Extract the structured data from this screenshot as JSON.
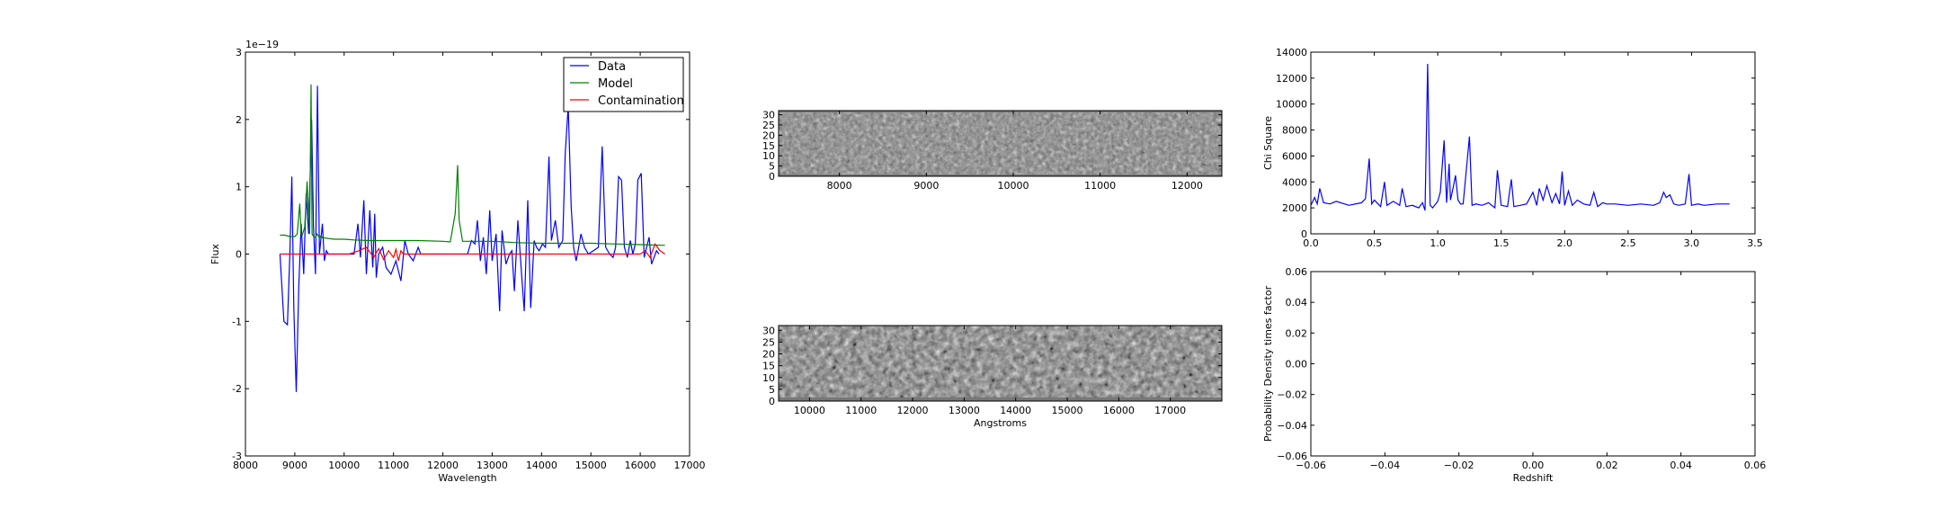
{
  "chart_data": [
    {
      "type": "line",
      "xlabel": "Wavelength",
      "ylabel": "Flux",
      "offset_text": "1e−19",
      "xlim": [
        8000,
        17000
      ],
      "ylim": [
        -3,
        3
      ],
      "xticks": [
        8000,
        9000,
        10000,
        11000,
        12000,
        13000,
        14000,
        15000,
        16000,
        17000
      ],
      "yticks": [
        -3,
        -2,
        -1,
        0,
        1,
        2,
        3
      ],
      "legend": "top-right",
      "series": [
        {
          "name": "Data",
          "color": "#0000ff",
          "x": [
            8700,
            8780,
            8850,
            8900,
            8940,
            8980,
            9030,
            9080,
            9130,
            9180,
            9230,
            9280,
            9340,
            9380,
            9420,
            9460,
            9500,
            9560,
            9600,
            9640,
            9680,
            9700,
            10150,
            10200,
            10280,
            10330,
            10400,
            10450,
            10520,
            10580,
            10620,
            10650,
            10700,
            10780,
            10850,
            10950,
            11050,
            11150,
            11230,
            11300,
            11400,
            11500,
            11550,
            11600,
            12500,
            12580,
            12650,
            12700,
            12760,
            12820,
            12880,
            12950,
            13000,
            13080,
            13150,
            13200,
            13280,
            13350,
            13400,
            13450,
            13520,
            13600,
            13650,
            13720,
            13780,
            13850,
            13900,
            13950,
            14020,
            14080,
            14150,
            14200,
            14280,
            14350,
            14430,
            14480,
            14540,
            14600,
            14650,
            14700,
            14740,
            14800,
            14870,
            14950,
            15050,
            15150,
            15230,
            15300,
            15380,
            15450,
            15500,
            15560,
            15620,
            15680,
            15740,
            15800,
            15850,
            15900,
            15950,
            16020,
            16080,
            16130,
            16180,
            16230,
            16280,
            16330,
            16380
          ],
          "y": [
            0,
            -1.0,
            -1.05,
            0,
            1.15,
            -0.8,
            -2.05,
            -0.5,
            0.45,
            -0.3,
            0.9,
            0.3,
            2.0,
            0.4,
            -0.3,
            2.5,
            0.0,
            0.45,
            -0.1,
            0.05,
            0,
            0,
            0,
            0,
            0.45,
            -0.05,
            0.8,
            -0.3,
            0.65,
            -0.2,
            0.6,
            -0.35,
            0.0,
            0.1,
            -0.2,
            -0.3,
            -0.1,
            -0.4,
            0.2,
            0,
            -0.1,
            0.1,
            0,
            0,
            0,
            0.2,
            0.15,
            0.5,
            -0.1,
            0.25,
            -0.3,
            0.65,
            -0.1,
            0.3,
            -0.85,
            0.35,
            -0.15,
            0.0,
            0.05,
            -0.55,
            0.5,
            -0.35,
            -0.85,
            0.8,
            -0.8,
            0.2,
            0.1,
            0.05,
            0.15,
            0.1,
            1.45,
            0.2,
            0.5,
            0.1,
            0.2,
            1.5,
            2.2,
            0.7,
            0.1,
            -0.1,
            0.05,
            0.3,
            0.1,
            0.0,
            0.05,
            0.1,
            1.6,
            0.1,
            0.0,
            -0.05,
            0.1,
            1.15,
            1.1,
            0.1,
            -0.05,
            0.2,
            0.0,
            0.15,
            1.1,
            1.2,
            -0.05,
            0.1,
            0.25,
            -0.15,
            -0.05,
            0.05,
            0.0
          ]
        },
        {
          "name": "Model",
          "color": "#008000",
          "x": [
            8700,
            8800,
            8900,
            9000,
            9050,
            9100,
            9130,
            9150,
            9200,
            9250,
            9300,
            9330,
            9350,
            9380,
            9420,
            9450,
            9500,
            9530,
            9560,
            9600,
            9700,
            9800,
            10000,
            10200,
            10500,
            11000,
            11500,
            12000,
            12150,
            12250,
            12300,
            12330,
            12400,
            12500,
            13000,
            13500,
            14000,
            14500,
            15000,
            15500,
            16000,
            16500
          ],
          "y": [
            0.28,
            0.28,
            0.26,
            0.26,
            0.3,
            0.75,
            0.3,
            0.28,
            0.4,
            1.08,
            0.3,
            2.52,
            0.3,
            0.26,
            0.25,
            0.3,
            0.24,
            0.27,
            0.24,
            0.24,
            0.23,
            0.22,
            0.22,
            0.21,
            0.2,
            0.2,
            0.2,
            0.19,
            0.18,
            0.6,
            1.32,
            0.5,
            0.19,
            0.19,
            0.19,
            0.17,
            0.16,
            0.16,
            0.16,
            0.15,
            0.14,
            0.13
          ]
        },
        {
          "name": "Contamination",
          "color": "#ff0000",
          "x": [
            8700,
            9500,
            10100,
            10300,
            10450,
            10600,
            10700,
            10800,
            10900,
            11000,
            11050,
            11100,
            11150,
            11200,
            11300,
            12000,
            13000,
            14000,
            15000,
            15500,
            16000,
            16100,
            16200,
            16300,
            16350,
            16400,
            16500
          ],
          "y": [
            0,
            0,
            0,
            0.05,
            0.1,
            -0.05,
            0.08,
            -0.08,
            0.05,
            -0.05,
            0.07,
            -0.1,
            0.05,
            0,
            0,
            0,
            0,
            0,
            0,
            0,
            0,
            0.05,
            -0.05,
            0.15,
            0.1,
            0.05,
            0
          ]
        }
      ]
    },
    {
      "type": "heatmap",
      "xticks": [
        8000,
        9000,
        10000,
        11000,
        12000
      ],
      "xlim": [
        7300,
        12400
      ],
      "yticks": [
        0,
        5,
        10,
        15,
        20,
        25,
        30
      ],
      "ylim": [
        0,
        32
      ]
    },
    {
      "type": "heatmap",
      "xlabel": "Angstroms",
      "xticks": [
        10000,
        11000,
        12000,
        13000,
        14000,
        15000,
        16000,
        17000
      ],
      "xlim": [
        9400,
        18000
      ],
      "yticks": [
        0,
        5,
        10,
        15,
        20,
        25,
        30
      ],
      "ylim": [
        0,
        32
      ]
    },
    {
      "type": "line",
      "ylabel": "Chi Square",
      "xlim": [
        0.0,
        3.5
      ],
      "ylim": [
        0,
        14000
      ],
      "xticks": [
        "0.0",
        "0.5",
        "1.0",
        "1.5",
        "2.0",
        "2.5",
        "3.0",
        "3.5"
      ],
      "yticks": [
        0,
        2000,
        4000,
        6000,
        8000,
        10000,
        12000,
        14000
      ],
      "series": [
        {
          "color": "#0000ff",
          "x": [
            0.0,
            0.03,
            0.05,
            0.07,
            0.1,
            0.15,
            0.2,
            0.3,
            0.4,
            0.43,
            0.46,
            0.48,
            0.5,
            0.55,
            0.58,
            0.6,
            0.65,
            0.7,
            0.72,
            0.75,
            0.8,
            0.85,
            0.88,
            0.9,
            0.92,
            0.94,
            0.96,
            1.0,
            1.02,
            1.05,
            1.07,
            1.09,
            1.1,
            1.12,
            1.14,
            1.16,
            1.18,
            1.2,
            1.25,
            1.27,
            1.3,
            1.35,
            1.4,
            1.45,
            1.47,
            1.5,
            1.55,
            1.58,
            1.6,
            1.65,
            1.7,
            1.75,
            1.78,
            1.8,
            1.83,
            1.86,
            1.9,
            1.93,
            1.96,
            1.98,
            2.0,
            2.03,
            2.06,
            2.1,
            2.15,
            2.2,
            2.23,
            2.26,
            2.3,
            2.33,
            2.4,
            2.5,
            2.6,
            2.7,
            2.75,
            2.78,
            2.8,
            2.83,
            2.86,
            2.9,
            2.95,
            2.98,
            3.0,
            3.05,
            3.1,
            3.2,
            3.3
          ],
          "y": [
            2200,
            2800,
            2300,
            3500,
            2400,
            2300,
            2500,
            2200,
            2400,
            2700,
            5800,
            2300,
            2600,
            2100,
            4000,
            2200,
            2500,
            2200,
            3500,
            2100,
            2200,
            2000,
            2400,
            1800,
            13100,
            2200,
            2000,
            2500,
            3200,
            7200,
            2400,
            5400,
            2600,
            3500,
            4500,
            2600,
            2300,
            2300,
            7500,
            2200,
            2300,
            2200,
            2400,
            2000,
            4900,
            2200,
            2100,
            4200,
            2100,
            2200,
            2300,
            3200,
            2200,
            3500,
            2600,
            3700,
            2400,
            3100,
            2300,
            4800,
            2200,
            3300,
            2200,
            2600,
            2300,
            2200,
            3200,
            2100,
            2400,
            2300,
            2300,
            2200,
            2300,
            2200,
            2400,
            3200,
            2800,
            3000,
            2300,
            2200,
            2300,
            4600,
            2200,
            2300,
            2200,
            2300,
            2300
          ]
        }
      ]
    },
    {
      "type": "line",
      "xlabel": "Redshift",
      "ylabel": "Probability Density times factor",
      "xlim": [
        -0.06,
        0.06
      ],
      "ylim": [
        -0.06,
        0.06
      ],
      "xticks": [
        "−0.06",
        "−0.04",
        "−0.02",
        "0.00",
        "0.02",
        "0.04",
        "0.06"
      ],
      "yticks": [
        "−0.06",
        "−0.04",
        "−0.02",
        "0.00",
        "0.02",
        "0.04",
        "0.06"
      ],
      "series": []
    }
  ]
}
